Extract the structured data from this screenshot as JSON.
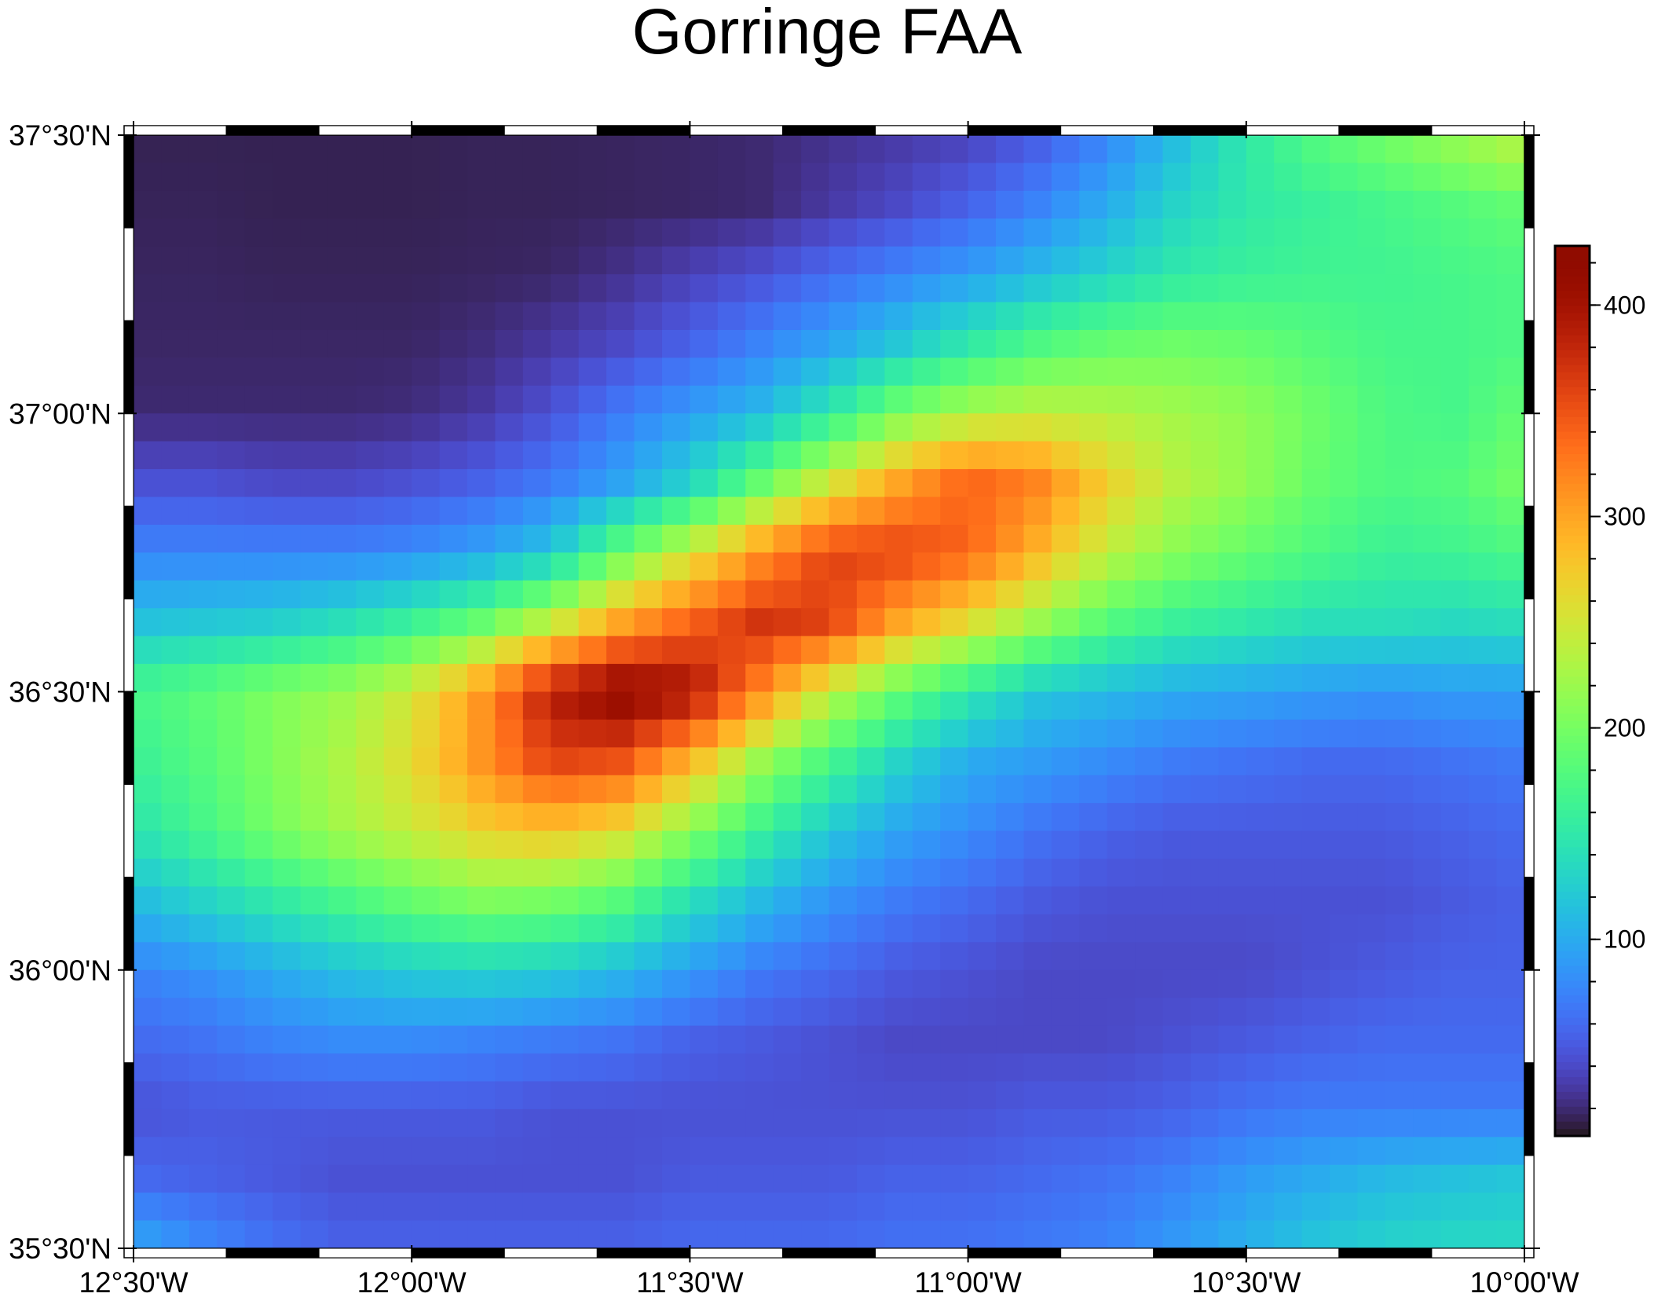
{
  "title": "Gorringe FAA",
  "chart_data": {
    "type": "heatmap",
    "title": "Gorringe FAA",
    "colormap": "turbo",
    "x_range": [
      -12.5,
      -10.0
    ],
    "y_range": [
      35.5,
      37.5
    ],
    "grid_step_deg": 0.125,
    "x_tick_labels": [
      "12°30'W",
      "12°00'W",
      "11°30'W",
      "11°00'W",
      "10°30'W",
      "10°00'W"
    ],
    "x_tick_values": [
      -12.5,
      -12.0,
      -11.5,
      -11.0,
      -10.5,
      -10.0
    ],
    "y_tick_labels": [
      "37°30'N",
      "37°00'N",
      "36°30'N",
      "36°00'N",
      "35°30'N"
    ],
    "y_tick_values": [
      37.5,
      37.0,
      36.5,
      36.0,
      35.5
    ],
    "colorbar": {
      "range": [
        7,
        428
      ],
      "tick_labels": [
        "100",
        "200",
        "300",
        "400"
      ],
      "tick_values": [
        100,
        200,
        300,
        400
      ],
      "minor_step": 20
    },
    "values_rows_north_to_south": [
      [
        15,
        15,
        15,
        15,
        15,
        16,
        16,
        17,
        18,
        20,
        25,
        30,
        35,
        50,
        75,
        110,
        150,
        180,
        200,
        220,
        240
      ],
      [
        16,
        16,
        15,
        15,
        15,
        16,
        16,
        17,
        18,
        20,
        30,
        40,
        55,
        75,
        100,
        130,
        150,
        160,
        170,
        180,
        190
      ],
      [
        17,
        17,
        16,
        16,
        16,
        17,
        18,
        25,
        35,
        45,
        60,
        75,
        90,
        110,
        130,
        150,
        160,
        165,
        165,
        170,
        175
      ],
      [
        18,
        18,
        18,
        18,
        18,
        22,
        30,
        40,
        55,
        75,
        95,
        120,
        150,
        175,
        190,
        195,
        190,
        180,
        170,
        170,
        175
      ],
      [
        20,
        20,
        20,
        20,
        22,
        30,
        45,
        70,
        90,
        110,
        150,
        200,
        230,
        240,
        235,
        225,
        215,
        195,
        175,
        170,
        190
      ],
      [
        45,
        45,
        40,
        40,
        45,
        55,
        70,
        95,
        130,
        190,
        250,
        300,
        340,
        320,
        270,
        235,
        215,
        190,
        175,
        180,
        200
      ],
      [
        75,
        75,
        75,
        75,
        80,
        95,
        120,
        190,
        250,
        310,
        360,
        360,
        340,
        290,
        240,
        210,
        190,
        175,
        160,
        165,
        175
      ],
      [
        115,
        120,
        125,
        140,
        160,
        190,
        240,
        300,
        340,
        370,
        360,
        300,
        260,
        220,
        180,
        160,
        150,
        140,
        140,
        135,
        140
      ],
      [
        170,
        185,
        205,
        220,
        250,
        310,
        390,
        420,
        400,
        320,
        240,
        190,
        150,
        120,
        110,
        100,
        95,
        90,
        85,
        90,
        90
      ],
      [
        160,
        180,
        205,
        230,
        260,
        310,
        360,
        350,
        290,
        220,
        170,
        130,
        100,
        90,
        80,
        70,
        65,
        60,
        60,
        65,
        70
      ],
      [
        145,
        170,
        200,
        225,
        245,
        270,
        280,
        260,
        210,
        160,
        120,
        95,
        80,
        65,
        55,
        50,
        50,
        50,
        50,
        55,
        60
      ],
      [
        110,
        130,
        150,
        170,
        190,
        205,
        200,
        180,
        140,
        110,
        85,
        70,
        60,
        50,
        45,
        45,
        45,
        45,
        45,
        50,
        55
      ],
      [
        75,
        85,
        100,
        115,
        125,
        130,
        125,
        110,
        90,
        70,
        60,
        50,
        45,
        40,
        40,
        40,
        40,
        45,
        50,
        55,
        55
      ],
      [
        60,
        65,
        75,
        80,
        80,
        75,
        70,
        65,
        55,
        50,
        45,
        40,
        40,
        40,
        40,
        45,
        50,
        55,
        60,
        60,
        60
      ],
      [
        45,
        50,
        50,
        50,
        50,
        50,
        45,
        45,
        45,
        45,
        45,
        45,
        45,
        50,
        50,
        55,
        65,
        70,
        70,
        70,
        70
      ],
      [
        60,
        55,
        50,
        45,
        45,
        45,
        45,
        45,
        50,
        50,
        50,
        55,
        55,
        60,
        65,
        75,
        90,
        100,
        110,
        115,
        120
      ],
      [
        100,
        80,
        65,
        55,
        55,
        55,
        55,
        55,
        60,
        60,
        60,
        65,
        65,
        70,
        75,
        90,
        105,
        120,
        130,
        135,
        135
      ]
    ]
  }
}
